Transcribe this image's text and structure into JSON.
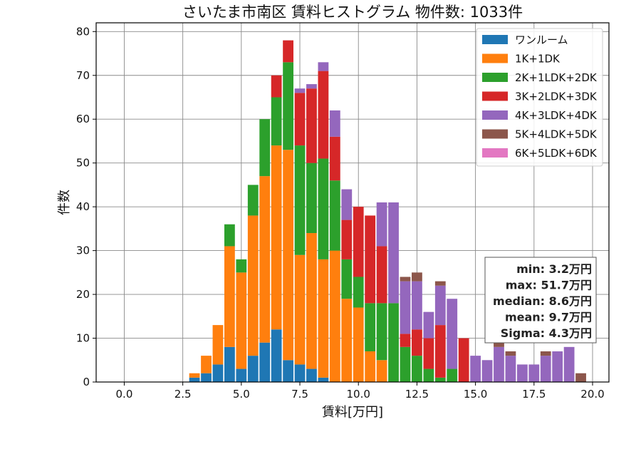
{
  "chart_data": {
    "type": "bar",
    "stacked": true,
    "title": "さいたま市南区 賃料ヒストグラム 物件数: 1033件",
    "xlabel": "賃料[万円]",
    "ylabel": "件数",
    "xlim": [
      -1.2,
      20.7
    ],
    "ylim": [
      0,
      82
    ],
    "xticks": [
      "0.0",
      "2.5",
      "5.0",
      "7.5",
      "10.0",
      "12.5",
      "15.0",
      "17.5",
      "20.0"
    ],
    "yticks": [
      "0",
      "10",
      "20",
      "30",
      "40",
      "50",
      "60",
      "70",
      "80"
    ],
    "grid": true,
    "legend_position": "top-right",
    "bin_width": 0.5,
    "x": [
      3.0,
      3.5,
      4.0,
      4.5,
      5.0,
      5.5,
      6.0,
      6.5,
      7.0,
      7.5,
      8.0,
      8.5,
      9.0,
      9.5,
      10.0,
      10.5,
      11.0,
      11.5,
      12.0,
      12.5,
      13.0,
      13.5,
      14.0,
      14.5,
      15.0,
      15.5,
      16.0,
      16.5,
      17.0,
      17.5,
      18.0,
      18.5,
      19.0,
      19.5
    ],
    "series": [
      {
        "name": "ワンルーム",
        "color": "#1f77b4",
        "values": [
          1,
          2,
          4,
          8,
          3,
          6,
          9,
          12,
          5,
          4,
          3,
          1,
          0,
          0,
          0,
          0,
          0,
          0,
          0,
          0,
          0,
          0,
          0,
          0,
          0,
          0,
          0,
          0,
          0,
          0,
          0,
          0,
          0,
          0
        ]
      },
      {
        "name": "1K+1DK",
        "color": "#ff7f0e",
        "values": [
          1,
          4,
          9,
          23,
          22,
          32,
          38,
          42,
          48,
          25,
          31,
          27,
          30,
          19,
          17,
          7,
          5,
          0,
          0,
          0,
          0,
          0,
          0,
          0,
          0,
          0,
          0,
          0,
          0,
          0,
          0,
          0,
          0,
          0
        ]
      },
      {
        "name": "2K+1LDK+2DK",
        "color": "#2ca02c",
        "values": [
          0,
          0,
          0,
          5,
          3,
          7,
          13,
          11,
          20,
          25,
          16,
          23,
          16,
          9,
          7,
          11,
          13,
          18,
          8,
          6,
          3,
          1,
          3,
          0,
          0,
          0,
          0,
          0,
          0,
          0,
          0,
          0,
          0,
          0
        ]
      },
      {
        "name": "3K+2LDK+3DK",
        "color": "#d62728",
        "values": [
          0,
          0,
          0,
          0,
          0,
          0,
          0,
          5,
          5,
          12,
          17,
          20,
          10,
          9,
          16,
          20,
          13,
          0,
          3,
          6,
          7,
          12,
          0,
          10,
          0,
          0,
          0,
          0,
          0,
          0,
          0,
          0,
          0,
          0
        ]
      },
      {
        "name": "4K+3LDK+4DK",
        "color": "#9467bd",
        "values": [
          0,
          0,
          0,
          0,
          0,
          0,
          0,
          0,
          0,
          1,
          1,
          2,
          6,
          7,
          0,
          0,
          10,
          23,
          12,
          11,
          6,
          9,
          16,
          0,
          6,
          5,
          8,
          6,
          4,
          4,
          6,
          7,
          8,
          0
        ]
      },
      {
        "name": "5K+4LDK+5DK",
        "color": "#8c564b",
        "values": [
          0,
          0,
          0,
          0,
          0,
          0,
          0,
          0,
          0,
          0,
          0,
          0,
          0,
          0,
          0,
          0,
          0,
          0,
          1,
          2,
          0,
          1,
          0,
          0,
          0,
          0,
          1,
          1,
          0,
          0,
          1,
          0,
          0,
          2
        ]
      },
      {
        "name": "6K+5LDK+6DK",
        "color": "#e377c2",
        "values": [
          0,
          0,
          0,
          0,
          0,
          0,
          0,
          0,
          0,
          0,
          0,
          0,
          0,
          0,
          0,
          0,
          0,
          0,
          0,
          0,
          0,
          0,
          0,
          0,
          0,
          0,
          0,
          0,
          0,
          0,
          0,
          0,
          0,
          0
        ]
      }
    ],
    "stats": [
      "min: 3.2万円",
      "max: 51.7万円",
      "median: 8.6万円",
      "mean: 9.7万円",
      "Sigma: 4.3万円"
    ]
  }
}
